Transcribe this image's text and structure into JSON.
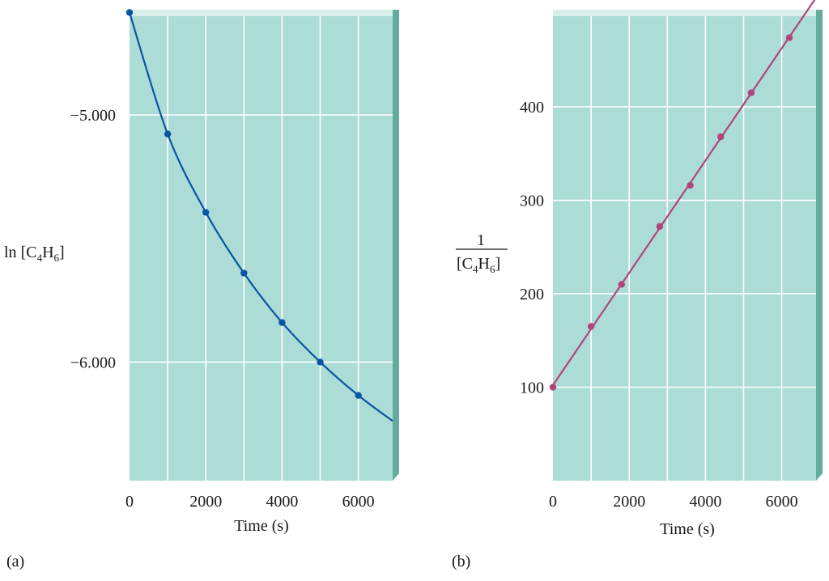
{
  "figure": {
    "colors": {
      "panel_fill": "#acdcd6",
      "panel_edge": "#62ad9f",
      "panel_edge_light": "#d7eeea",
      "grid": "#ffffff",
      "series_a": "#0a55a3",
      "series_b": "#b0457c"
    }
  },
  "chart_data": [
    {
      "type": "scatter",
      "panel_label": "(a)",
      "xlabel": "Time (s)",
      "ylabel": {
        "prefix": "ln ",
        "species": "[C4H6]",
        "main": "[C",
        "sub1": "4",
        "mid": "H",
        "sub2": "6",
        "close": "]"
      },
      "xlim": [
        0,
        6900
      ],
      "ylim": [
        -6.48,
        -4.6
      ],
      "xticks": [
        0,
        2000,
        4000,
        6000
      ],
      "xtick_labels": [
        "0",
        "2000",
        "4000",
        "6000"
      ],
      "yticks": [
        -5.0,
        -6.0
      ],
      "ytick_labels": [
        "−5.000",
        "−6.000"
      ],
      "grid": true,
      "series": [
        {
          "color": "#0a55a3",
          "x": [
            0,
            1000,
            2000,
            3000,
            4000,
            5000,
            6000
          ],
          "y": [
            -4.585,
            -5.077,
            -5.394,
            -5.64,
            -5.84,
            -6.0,
            -6.135
          ]
        }
      ],
      "fit": {
        "kind": "curve",
        "x_end": 6900
      }
    },
    {
      "type": "scatter",
      "panel_label": "(b)",
      "xlabel": "Time (s)",
      "ylabel": {
        "numerator": "1",
        "species": "[C4H6]",
        "main": "[C",
        "sub1": "4",
        "mid": "H",
        "sub2": "6",
        "close": "]"
      },
      "xlim": [
        0,
        6900
      ],
      "ylim": [
        0,
        497
      ],
      "xticks": [
        0,
        2000,
        4000,
        6000
      ],
      "xtick_labels": [
        "0",
        "2000",
        "4000",
        "6000"
      ],
      "yticks": [
        100,
        200,
        300,
        400
      ],
      "ytick_labels": [
        "100",
        "200",
        "300",
        "400"
      ],
      "grid": true,
      "series": [
        {
          "color": "#b0457c",
          "x": [
            0,
            1000,
            1800,
            2800,
            3600,
            4400,
            5200,
            6200
          ],
          "y": [
            100,
            165,
            210,
            272,
            316,
            368,
            415,
            474
          ]
        }
      ],
      "fit": {
        "kind": "line",
        "x_end": 6900
      }
    }
  ]
}
